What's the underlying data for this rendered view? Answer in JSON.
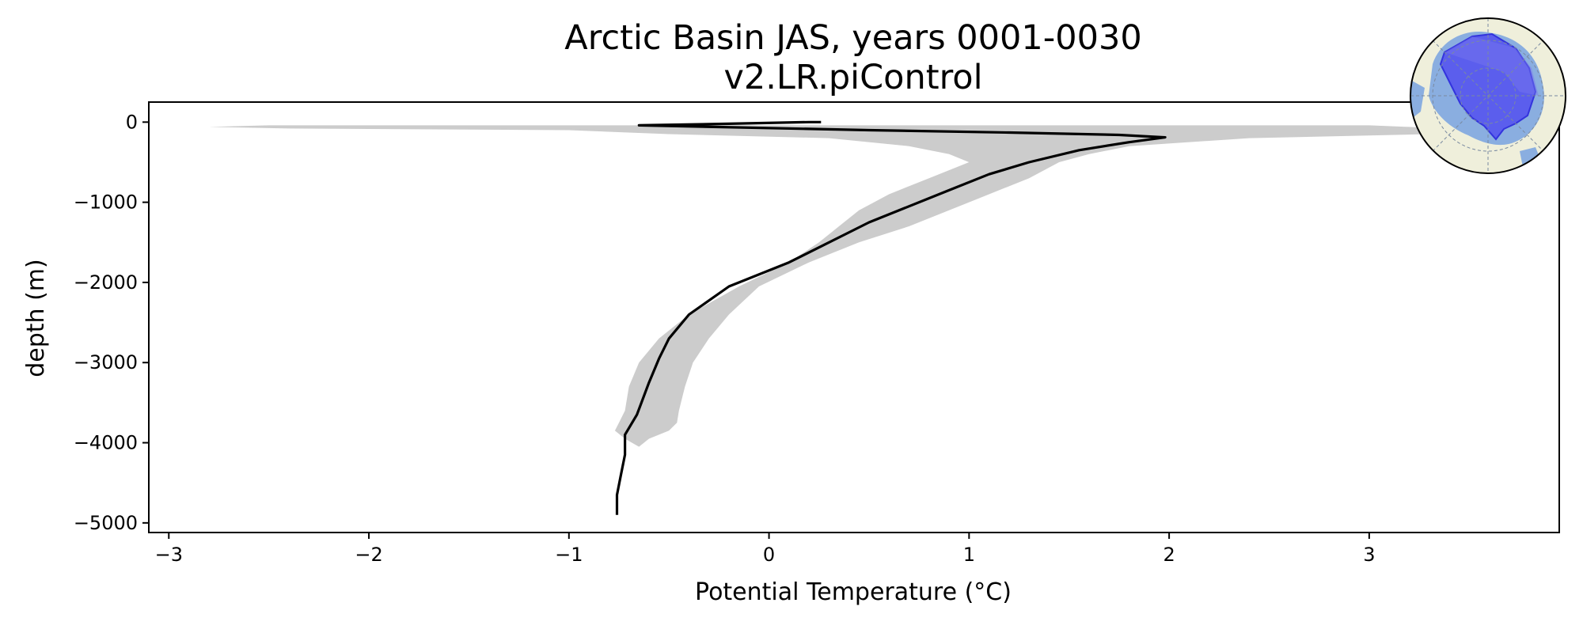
{
  "figure": {
    "title_line1": "Arctic Basin JAS, years 0001-0030",
    "title_line2": "v2.LR.piControl"
  },
  "chart_data": {
    "type": "line",
    "xlabel": "Potential Temperature (°C)",
    "ylabel": "depth (m)",
    "xlim": [
      -3.1,
      3.95
    ],
    "ylim": [
      -5120,
      250
    ],
    "xticks": [
      -3,
      -2,
      -1,
      0,
      1,
      2,
      3
    ],
    "yticks": [
      0,
      -1000,
      -2000,
      -3000,
      -4000,
      -5000
    ],
    "xtick_labels": [
      "−3",
      "−2",
      "−1",
      "0",
      "1",
      "2",
      "3"
    ],
    "ytick_labels": [
      "0",
      "−1000",
      "−2000",
      "−3000",
      "−4000",
      "−5000"
    ],
    "grid": false,
    "series": [
      {
        "type": "line",
        "color": "#000000",
        "x": [
          0.26,
          0.2,
          -0.2,
          -0.65,
          0.5,
          1.2,
          1.75,
          1.98,
          1.8,
          1.55,
          1.3,
          1.1,
          0.9,
          0.5,
          0.1,
          -0.2,
          -0.4,
          -0.5,
          -0.55,
          -0.6,
          -0.66,
          -0.72,
          -0.72,
          -0.74,
          -0.76,
          -0.76
        ],
        "y": [
          0,
          0,
          -20,
          -40,
          -100,
          -130,
          -160,
          -190,
          -250,
          -350,
          -500,
          -650,
          -850,
          -1250,
          -1750,
          -2050,
          -2400,
          -2700,
          -2950,
          -3250,
          -3650,
          -3900,
          -4150,
          -4400,
          -4650,
          -4900
        ]
      }
    ],
    "band": {
      "color": "#cccccc",
      "y": [
        -40,
        -60,
        -80,
        -100,
        -150,
        -200,
        -300,
        -400,
        -500,
        -700,
        -900,
        -1100,
        -1300,
        -1500,
        -1750,
        -2050,
        -2400,
        -2700,
        -3000,
        -3300,
        -3600,
        -3750,
        -3850,
        -3950,
        -4050
      ],
      "x_low": [
        -2.5,
        -2.8,
        -2.4,
        -1.0,
        -0.5,
        0.3,
        0.7,
        0.9,
        1.0,
        0.8,
        0.6,
        0.45,
        0.35,
        0.25,
        0.1,
        -0.15,
        -0.4,
        -0.55,
        -0.65,
        -0.7,
        -0.72,
        -0.75,
        -0.77,
        -0.72,
        -0.65
      ],
      "x_high": [
        3.0,
        3.2,
        3.35,
        3.35,
        3.3,
        2.4,
        1.8,
        1.6,
        1.45,
        1.3,
        1.1,
        0.9,
        0.7,
        0.45,
        0.2,
        -0.05,
        -0.2,
        -0.3,
        -0.38,
        -0.42,
        -0.45,
        -0.46,
        -0.5,
        -0.6,
        -0.65
      ]
    },
    "inset_map": {
      "description_visible": "polar stereographic map of Arctic with region highlighted",
      "ocean_color": "#8aaee0",
      "land_color": "#efefdb",
      "region_color": "#5555ee"
    }
  }
}
